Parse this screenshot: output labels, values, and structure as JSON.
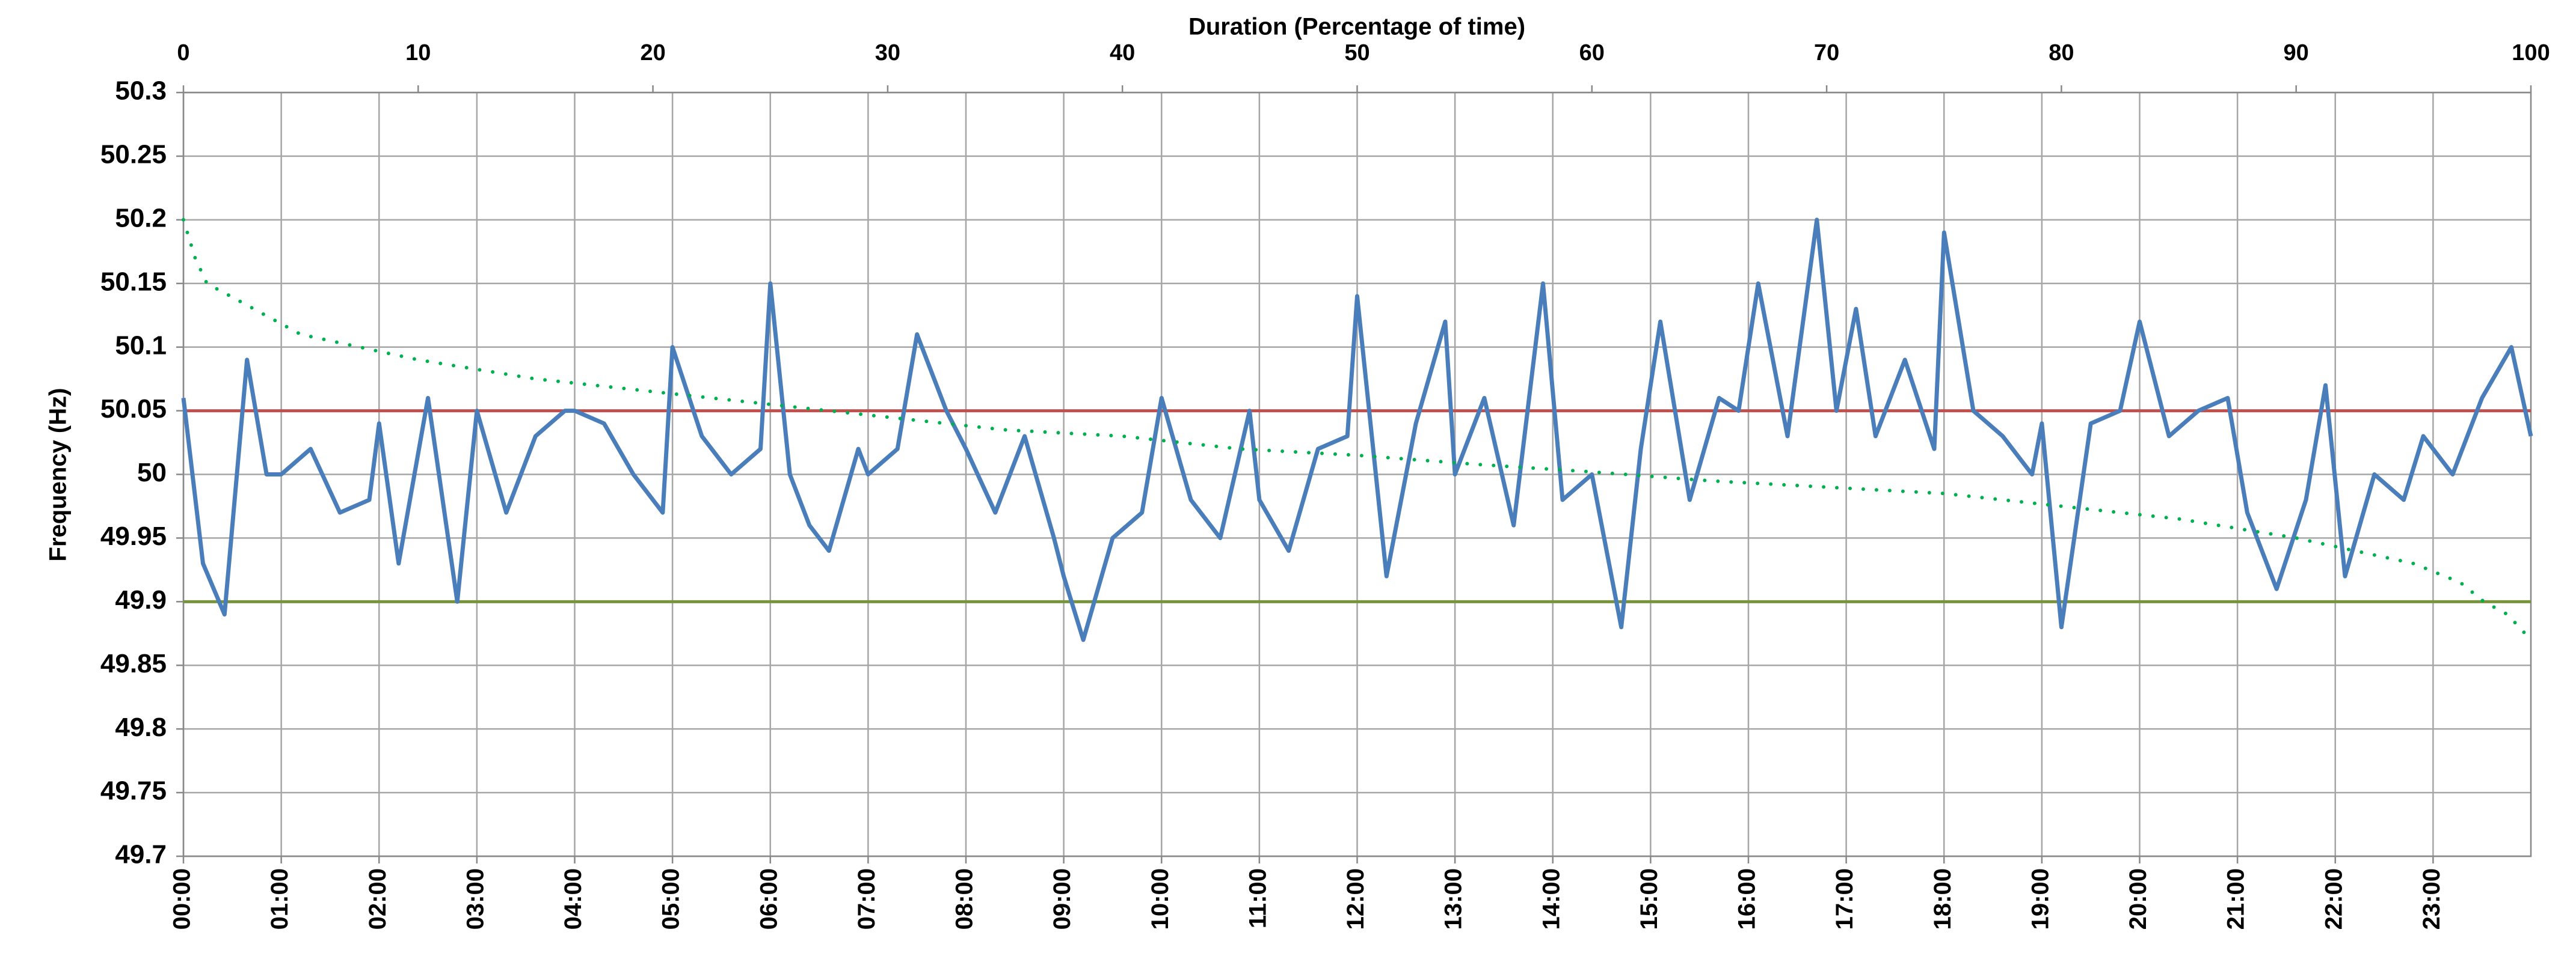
{
  "chart_data": {
    "type": "line",
    "x2label": "Duration (Percentage of time)",
    "ylabel": "Frequency (Hz)",
    "xlim": [
      0,
      24
    ],
    "xticks": [
      {
        "value": 0,
        "label": "00:00"
      },
      {
        "value": 1,
        "label": "01:00"
      },
      {
        "value": 2,
        "label": "02:00"
      },
      {
        "value": 3,
        "label": "03:00"
      },
      {
        "value": 4,
        "label": "04:00"
      },
      {
        "value": 5,
        "label": "05:00"
      },
      {
        "value": 6,
        "label": "06:00"
      },
      {
        "value": 7,
        "label": "07:00"
      },
      {
        "value": 8,
        "label": "08:00"
      },
      {
        "value": 9,
        "label": "09:00"
      },
      {
        "value": 10,
        "label": "10:00"
      },
      {
        "value": 11,
        "label": "11:00"
      },
      {
        "value": 12,
        "label": "12:00"
      },
      {
        "value": 13,
        "label": "13:00"
      },
      {
        "value": 14,
        "label": "14:00"
      },
      {
        "value": 15,
        "label": "15:00"
      },
      {
        "value": 16,
        "label": "16:00"
      },
      {
        "value": 17,
        "label": "17:00"
      },
      {
        "value": 18,
        "label": "18:00"
      },
      {
        "value": 19,
        "label": "19:00"
      },
      {
        "value": 20,
        "label": "20:00"
      },
      {
        "value": 21,
        "label": "21:00"
      },
      {
        "value": 22,
        "label": "22:00"
      },
      {
        "value": 23,
        "label": "23:00"
      }
    ],
    "x2lim": [
      0,
      100
    ],
    "x2ticks": [
      0,
      10,
      20,
      30,
      40,
      50,
      60,
      70,
      80,
      90,
      100
    ],
    "ylim": [
      49.7,
      50.3
    ],
    "yticks": [
      49.7,
      49.75,
      49.8,
      49.85,
      49.9,
      49.95,
      50,
      50.05,
      50.1,
      50.15,
      50.2,
      50.25,
      50.3
    ],
    "grid": true,
    "series": [
      {
        "color": "#4a7ebb",
        "x": [
          0,
          0.2,
          0.42,
          0.65,
          0.85,
          1.0,
          1.3,
          1.6,
          1.9,
          2.0,
          2.2,
          2.5,
          2.8,
          3.0,
          3.3,
          3.6,
          3.9,
          4.0,
          4.3,
          4.6,
          4.9,
          5.0,
          5.3,
          5.6,
          5.9,
          6.0,
          6.2,
          6.4,
          6.6,
          6.9,
          7.0,
          7.3,
          7.5,
          7.8,
          8.0,
          8.3,
          8.6,
          8.9,
          9.0,
          9.2,
          9.5,
          9.8,
          10.0,
          10.3,
          10.6,
          10.9,
          11.0,
          11.3,
          11.6,
          11.9,
          12.0,
          12.3,
          12.6,
          12.9,
          13.0,
          13.3,
          13.6,
          13.9,
          14.1,
          14.4,
          14.7,
          14.9,
          15.1,
          15.4,
          15.7,
          15.9,
          16.1,
          16.4,
          16.7,
          16.9,
          17.1,
          17.3,
          17.6,
          17.9,
          18.0,
          18.3,
          18.6,
          18.9,
          19.0,
          19.2,
          19.5,
          19.8,
          20.0,
          20.3,
          20.6,
          20.9,
          21.1,
          21.4,
          21.7,
          21.9,
          22.1,
          22.4,
          22.7,
          22.9,
          23.2,
          23.5,
          23.8,
          24.0
        ],
        "values": [
          50.06,
          49.93,
          49.89,
          50.09,
          50.0,
          50.0,
          50.02,
          49.97,
          49.98,
          50.04,
          49.93,
          50.06,
          49.9,
          50.05,
          49.97,
          50.03,
          50.05,
          50.05,
          50.04,
          50.0,
          49.97,
          50.1,
          50.03,
          50.0,
          50.02,
          50.15,
          50.0,
          49.96,
          49.94,
          50.02,
          50.0,
          50.02,
          50.11,
          50.05,
          50.02,
          49.97,
          50.03,
          49.95,
          49.92,
          49.87,
          49.95,
          49.97,
          50.06,
          49.98,
          49.95,
          50.05,
          49.98,
          49.94,
          50.02,
          50.03,
          50.14,
          49.92,
          50.04,
          50.12,
          50.0,
          50.06,
          49.96,
          50.15,
          49.98,
          50.0,
          49.88,
          50.02,
          50.12,
          49.98,
          50.06,
          50.05,
          50.15,
          50.03,
          50.2,
          50.05,
          50.13,
          50.03,
          50.09,
          50.02,
          50.19,
          50.05,
          50.03,
          50.0,
          50.04,
          49.88,
          50.04,
          50.05,
          50.12,
          50.03,
          50.05,
          50.06,
          49.97,
          49.91,
          49.98,
          50.07,
          49.92,
          50.0,
          49.98,
          50.03,
          50.0,
          50.06,
          50.1,
          50.03
        ]
      },
      {
        "type": "scatter",
        "axis": "x2",
        "color": "#00b050",
        "x": [
          0,
          0.5,
          1,
          2,
          5,
          10,
          15,
          20,
          25,
          30,
          35,
          40,
          45,
          50,
          55,
          60,
          65,
          70,
          75,
          80,
          85,
          90,
          95,
          97,
          98,
          99,
          100
        ],
        "values": [
          50.2,
          50.17,
          50.15,
          50.14,
          50.11,
          50.09,
          50.075,
          50.065,
          50.055,
          50.045,
          50.035,
          50.03,
          50.02,
          50.015,
          50.008,
          50.002,
          49.995,
          49.99,
          49.985,
          49.975,
          49.965,
          49.95,
          49.93,
          49.915,
          49.9,
          49.89,
          49.87
        ]
      }
    ],
    "reference_lines": [
      {
        "value": 50.05,
        "color": "#c0504d"
      },
      {
        "value": 49.9,
        "color": "#77933c"
      }
    ]
  }
}
